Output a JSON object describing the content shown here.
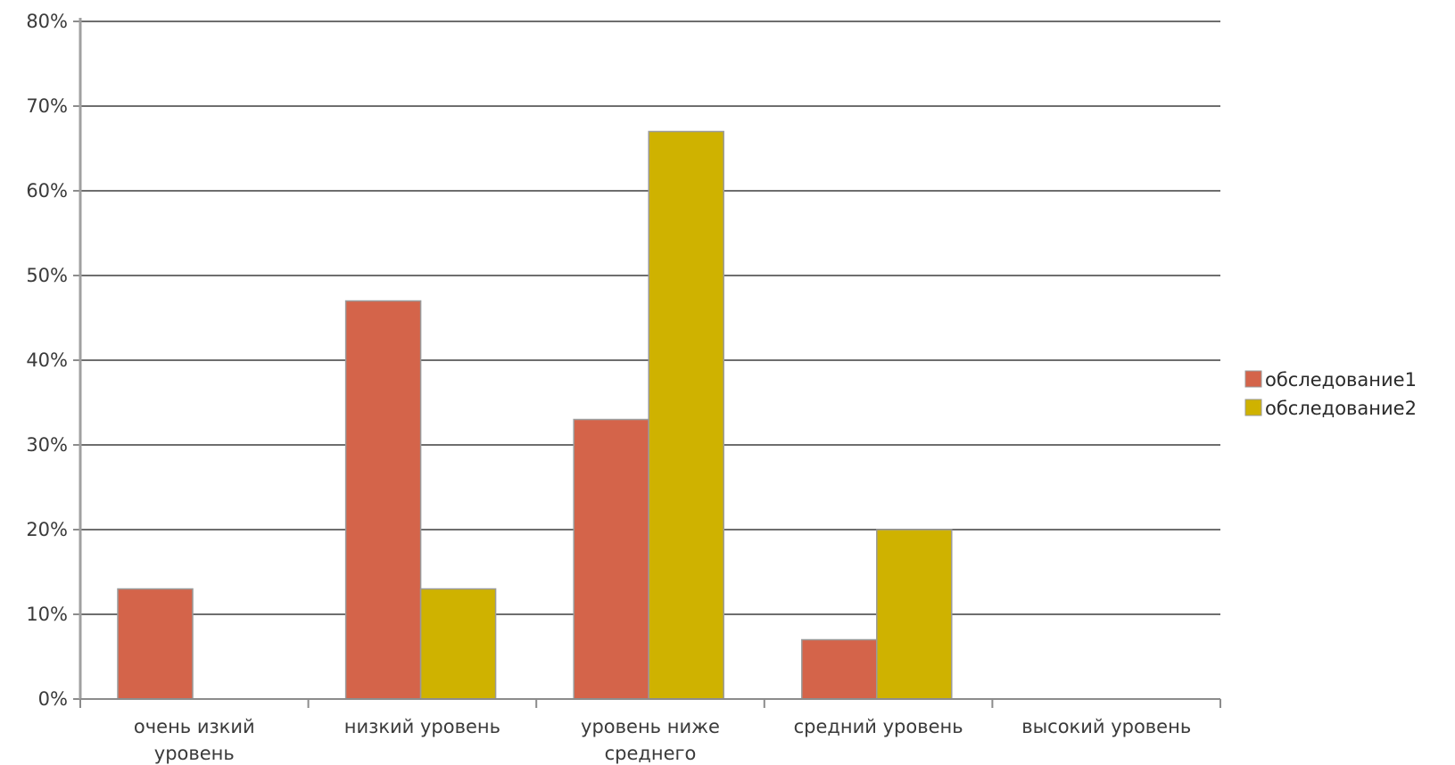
{
  "chart_data": {
    "type": "bar",
    "categories": [
      [
        "очень изкий",
        "уровень"
      ],
      [
        "низкий уровень"
      ],
      [
        "уровень ниже",
        "среднего"
      ],
      [
        "средний уровень"
      ],
      [
        "высокий уровень"
      ]
    ],
    "series": [
      {
        "name": "обследование1",
        "values": [
          13,
          47,
          33,
          7,
          0
        ],
        "color": "#d4644a"
      },
      {
        "name": "обследование2",
        "values": [
          0,
          13,
          67,
          20,
          0
        ],
        "color": "#cfb200"
      }
    ],
    "ylim": [
      0,
      80
    ],
    "yticks": [
      0,
      10,
      20,
      30,
      40,
      50,
      60,
      70,
      80
    ],
    "ytick_labels": [
      "0%",
      "10%",
      "20%",
      "30%",
      "40%",
      "50%",
      "60%",
      "70%",
      "80%"
    ],
    "grid": true,
    "legend": "right",
    "title": "",
    "xlabel": "",
    "ylabel": ""
  }
}
